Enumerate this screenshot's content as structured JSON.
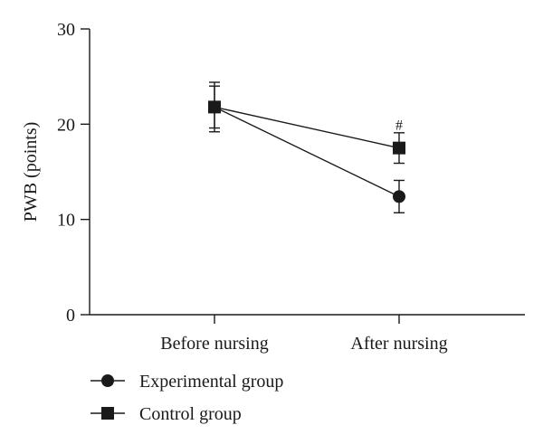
{
  "chart_data": {
    "type": "line",
    "categories": [
      "Before nursing",
      "After nursing"
    ],
    "ylabel": "PWB (points)",
    "xlabel": "",
    "ylim": [
      0,
      30
    ],
    "yticks": [
      0,
      10,
      20,
      30
    ],
    "grid": false,
    "legend_position": "bottom-left",
    "series": [
      {
        "name": "Experimental group",
        "marker": "circle",
        "values": [
          21.8,
          12.4
        ],
        "error": [
          2.6,
          1.7
        ]
      },
      {
        "name": "Control group",
        "marker": "square",
        "values": [
          21.8,
          17.5
        ],
        "error": [
          2.2,
          1.6
        ]
      }
    ],
    "annotations": [
      {
        "text": "#",
        "category": "After nursing",
        "y": 20.0
      }
    ]
  }
}
